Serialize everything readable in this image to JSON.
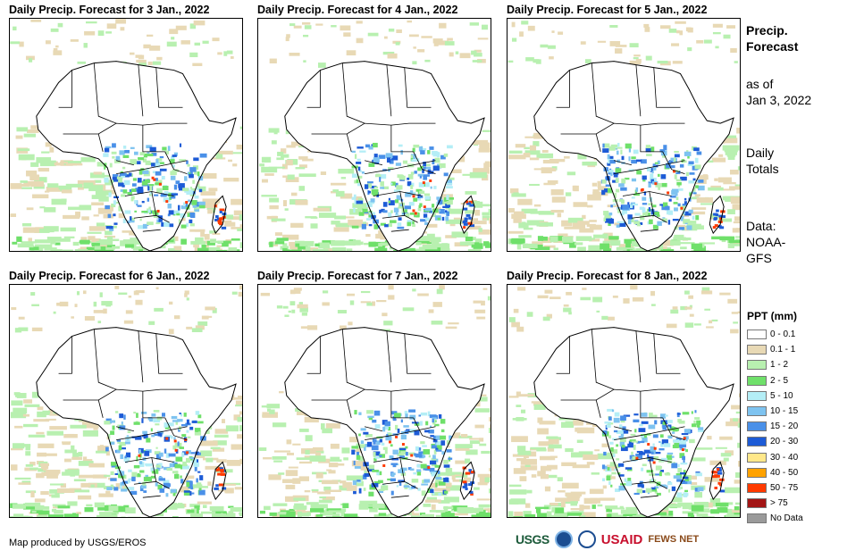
{
  "panels": [
    {
      "title": "Daily Precip. Forecast for 3 Jan., 2022",
      "day": 3
    },
    {
      "title": "Daily Precip. Forecast for 4 Jan., 2022",
      "day": 4
    },
    {
      "title": "Daily Precip. Forecast for 5 Jan., 2022",
      "day": 5
    },
    {
      "title": "Daily Precip. Forecast for 6 Jan., 2022",
      "day": 6
    },
    {
      "title": "Daily Precip. Forecast for 7 Jan., 2022",
      "day": 7
    },
    {
      "title": "Daily Precip. Forecast for 8 Jan., 2022",
      "day": 8
    }
  ],
  "side": {
    "title_line1": "Precip.",
    "title_line2": "Forecast",
    "asof_line1": "as of",
    "asof_line2": "Jan 3, 2022",
    "totals_line1": "Daily",
    "totals_line2": "Totals",
    "data_line1": "Data:",
    "data_line2": "NOAA-",
    "data_line3": "GFS"
  },
  "legend": {
    "title": "PPT (mm)",
    "items": [
      {
        "label": "0 - 0.1",
        "color": "#ffffff"
      },
      {
        "label": "0.1 - 1",
        "color": "#e8d9b5"
      },
      {
        "label": "1 - 2",
        "color": "#b8f0b0"
      },
      {
        "label": "2 - 5",
        "color": "#6fe06a"
      },
      {
        "label": "5 - 10",
        "color": "#b4eef6"
      },
      {
        "label": "10 - 15",
        "color": "#7ec3f0"
      },
      {
        "label": "15 - 20",
        "color": "#4a90e8"
      },
      {
        "label": "20 - 30",
        "color": "#1d5bd6"
      },
      {
        "label": "30 - 40",
        "color": "#ffe88a"
      },
      {
        "label": "40 - 50",
        "color": "#ffa200"
      },
      {
        "label": "50 - 75",
        "color": "#ff3a00"
      },
      {
        "label": "> 75",
        "color": "#a31515"
      },
      {
        "label": "No Data",
        "color": "#9a9a9a"
      }
    ]
  },
  "credit": "Map produced by USGS/EROS",
  "logos": {
    "usgs": "USGS",
    "usaid": "USAID",
    "fews": "FEWS NET"
  }
}
